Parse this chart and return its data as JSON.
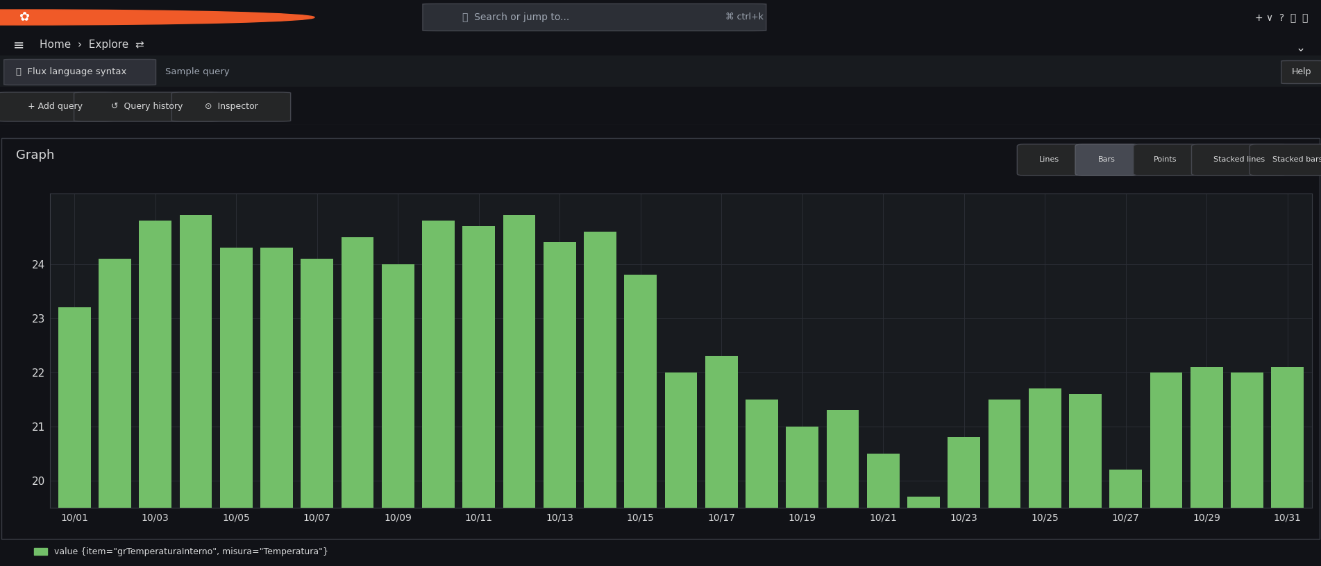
{
  "bg_dark": "#111217",
  "bg_main": "#181b1f",
  "bg_panel": "#1a1c23",
  "bg_query": "#1e2028",
  "bg_btn": "#252627",
  "bg_tab_active": "#2e3038",
  "bar_color": "#73bf69",
  "grid_color": "#2c2f36",
  "border_color": "#3a3d45",
  "text_color": "#d8d9da",
  "text_dim": "#9fa7b3",
  "text_white": "#ffffff",
  "figsize": [
    19.03,
    8.16
  ],
  "dpi": 100,
  "title": "Graph",
  "legend_label": "value {item=\"grTemperaturaInterno\", misura=\"Temperatura\"}",
  "x_labels": [
    "10/01",
    "10/03",
    "10/05",
    "10/07",
    "10/09",
    "10/11",
    "10/13",
    "10/15",
    "10/17",
    "10/19",
    "10/21",
    "10/23",
    "10/25",
    "10/27",
    "10/29",
    "10/31"
  ],
  "yticks": [
    20,
    21,
    22,
    23,
    24
  ],
  "ylim_min": 19.5,
  "ylim_max": 25.3,
  "view_btns": [
    "Lines",
    "Bars",
    "Points",
    "Stacked lines",
    "Stacked bars"
  ],
  "view_active": "Bars",
  "bar_heights": [
    23.2,
    24.1,
    24.8,
    24.9,
    24.3,
    24.3,
    24.1,
    24.5,
    24.0,
    24.8,
    24.7,
    24.9,
    24.4,
    24.6,
    23.8,
    22.0,
    22.3,
    21.5,
    21.0,
    21.3,
    20.5,
    19.7,
    20.8,
    21.5,
    21.7,
    21.6,
    20.2,
    22.0,
    22.1,
    22.0,
    22.1
  ]
}
